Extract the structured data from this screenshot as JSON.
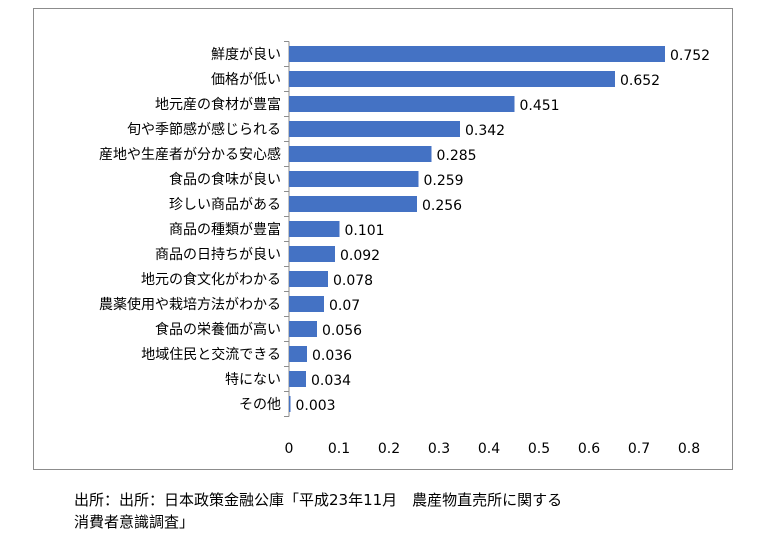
{
  "chart_data": {
    "type": "bar",
    "orientation": "horizontal",
    "title": "",
    "xlabel": "",
    "ylabel": "",
    "categories": [
      "鮮度が良い",
      "価格が低い",
      "地元産の食材が豊富",
      "旬や季節感が感じられる",
      "産地や生産者が分かる安心感",
      "食品の食味が良い",
      "珍しい商品がある",
      "商品の種類が豊富",
      "商品の日持ちが良い",
      "地元の食文化がわかる",
      "農薬使用や栽培方法がわかる",
      "食品の栄養価が高い",
      "地域住民と交流できる",
      "特にない",
      "その他"
    ],
    "values": [
      0.752,
      0.652,
      0.451,
      0.342,
      0.285,
      0.259,
      0.256,
      0.101,
      0.092,
      0.078,
      0.07,
      0.056,
      0.036,
      0.034,
      0.003
    ],
    "value_labels": [
      "0.752",
      "0.652",
      "0.451",
      "0.342",
      "0.285",
      "0.259",
      "0.256",
      "0.101",
      "0.092",
      "0.078",
      "0.07",
      "0.056",
      "0.036",
      "0.034",
      "0.003"
    ],
    "xlim": [
      0,
      0.8
    ],
    "xticks": [
      "0",
      "0.1",
      "0.2",
      "0.3",
      "0.4",
      "0.5",
      "0.6",
      "0.7",
      "0.8"
    ],
    "grid": false,
    "bar_color": "#4472c4"
  },
  "source": {
    "line1": "出所：出所：日本政策金融公庫「平成23年11月　農産物直売所に関する",
    "line2": "消費者意識調査」"
  }
}
